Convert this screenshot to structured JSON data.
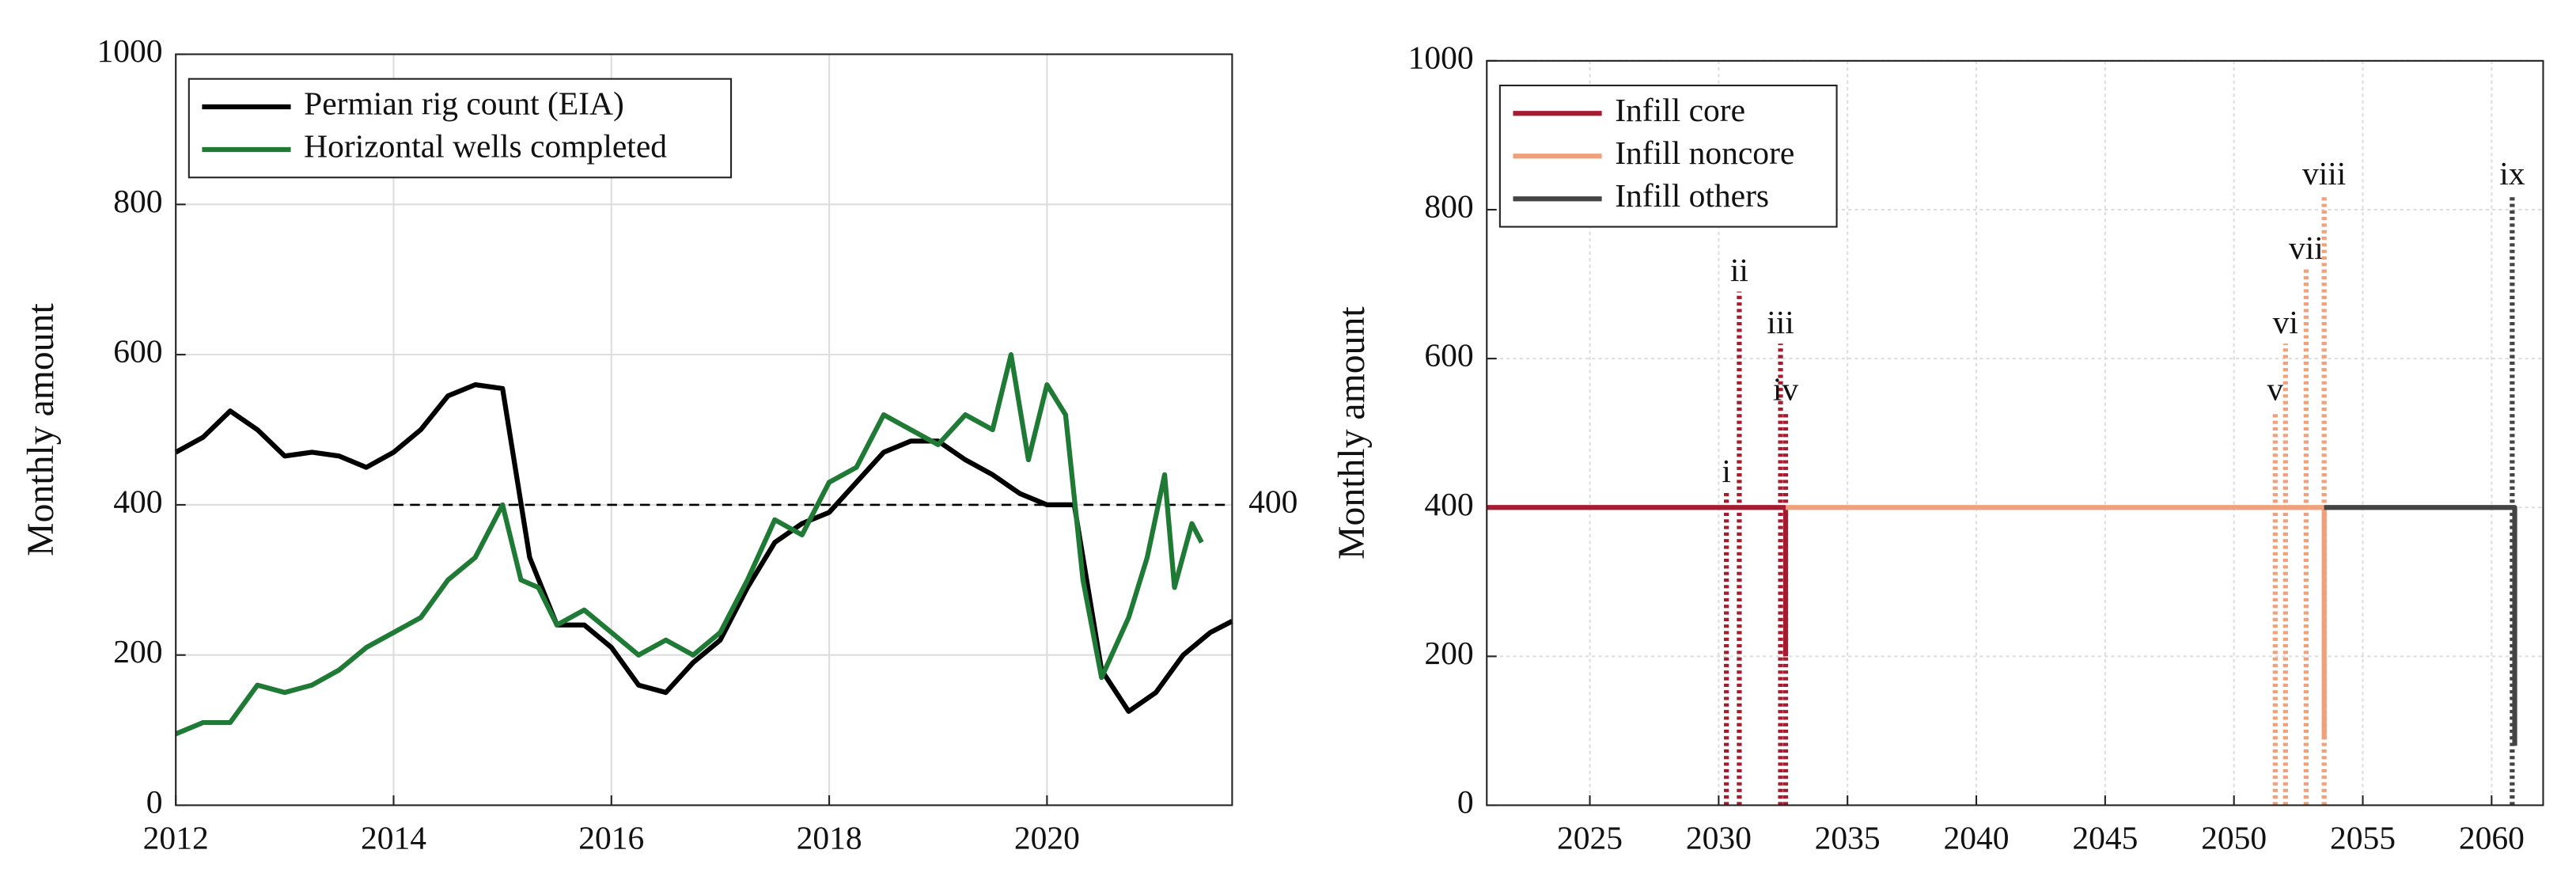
{
  "chart_data": [
    {
      "type": "line",
      "y_label": "Monthly amount",
      "xlim": [
        2012,
        2021.7
      ],
      "ylim": [
        0,
        1000
      ],
      "xticks": [
        2012,
        2014,
        2016,
        2018,
        2020
      ],
      "yticks": [
        0,
        200,
        400,
        600,
        800,
        1000
      ],
      "grid": true,
      "legend": "upper left",
      "series": [
        {
          "name": "Permian rig count (EIA)",
          "color": "#000000",
          "x": [
            2012.0,
            2012.25,
            2012.5,
            2012.75,
            2013.0,
            2013.25,
            2013.5,
            2013.75,
            2014.0,
            2014.25,
            2014.5,
            2014.75,
            2015.0,
            2015.25,
            2015.5,
            2015.75,
            2016.0,
            2016.25,
            2016.5,
            2016.75,
            2017.0,
            2017.25,
            2017.5,
            2017.75,
            2018.0,
            2018.25,
            2018.5,
            2018.75,
            2019.0,
            2019.25,
            2019.5,
            2019.75,
            2020.0,
            2020.25,
            2020.5,
            2020.75,
            2021.0,
            2021.25,
            2021.5,
            2021.7
          ],
          "values": [
            470,
            490,
            525,
            500,
            465,
            470,
            465,
            450,
            470,
            500,
            545,
            560,
            555,
            330,
            240,
            240,
            210,
            160,
            150,
            190,
            220,
            290,
            350,
            375,
            390,
            430,
            470,
            485,
            485,
            460,
            440,
            415,
            400,
            400,
            180,
            125,
            150,
            200,
            230,
            245
          ]
        },
        {
          "name": "Horizontal wells completed",
          "color": "#1e7a34",
          "x": [
            2012.0,
            2012.25,
            2012.5,
            2012.75,
            2013.0,
            2013.25,
            2013.5,
            2013.75,
            2014.0,
            2014.25,
            2014.5,
            2014.75,
            2015.0,
            2015.17,
            2015.33,
            2015.5,
            2015.75,
            2016.0,
            2016.25,
            2016.5,
            2016.75,
            2017.0,
            2017.25,
            2017.5,
            2017.75,
            2018.0,
            2018.25,
            2018.5,
            2018.75,
            2019.0,
            2019.25,
            2019.5,
            2019.67,
            2019.83,
            2020.0,
            2020.17,
            2020.33,
            2020.5,
            2020.75,
            2020.92,
            2021.08,
            2021.17,
            2021.33,
            2021.42
          ],
          "values": [
            95,
            110,
            110,
            160,
            150,
            160,
            180,
            210,
            230,
            250,
            300,
            330,
            400,
            300,
            290,
            240,
            260,
            230,
            200,
            220,
            200,
            230,
            300,
            380,
            360,
            430,
            450,
            520,
            500,
            480,
            520,
            500,
            600,
            460,
            560,
            520,
            300,
            170,
            250,
            330,
            440,
            290,
            375,
            350
          ]
        }
      ],
      "reference_line": {
        "y": 400,
        "x_start": 2014,
        "label": 400
      }
    },
    {
      "type": "line",
      "y_label": "Monthly amount",
      "xlim": [
        2021,
        2062
      ],
      "ylim": [
        0,
        1000
      ],
      "xticks": [
        2025,
        2030,
        2035,
        2040,
        2045,
        2050,
        2055,
        2060
      ],
      "yticks": [
        0,
        200,
        400,
        600,
        800,
        1000
      ],
      "grid": true,
      "legend": "upper left",
      "series": [
        {
          "name": "Infill core",
          "color": "#a51c30",
          "x": [
            2021,
            2032.6,
            2032.6
          ],
          "values": [
            400,
            400,
            200
          ]
        },
        {
          "name": "Infill noncore",
          "color": "#f0a07a",
          "x": [
            2032.6,
            2053.5,
            2053.5
          ],
          "values": [
            400,
            400,
            90
          ]
        },
        {
          "name": "Infill others",
          "color": "#444444",
          "x": [
            2053.5,
            2060.9,
            2060.9
          ],
          "values": [
            400,
            400,
            80
          ]
        }
      ],
      "markers": [
        {
          "label": "i",
          "x": 2030.3,
          "y": 420,
          "series": 0
        },
        {
          "label": "ii",
          "x": 2030.8,
          "y": 690,
          "series": 0
        },
        {
          "label": "iii",
          "x": 2032.4,
          "y": 620,
          "series": 0
        },
        {
          "label": "iv",
          "x": 2032.6,
          "y": 530,
          "series": 0
        },
        {
          "label": "v",
          "x": 2051.6,
          "y": 530,
          "series": 1
        },
        {
          "label": "vi",
          "x": 2052.0,
          "y": 620,
          "series": 1
        },
        {
          "label": "vii",
          "x": 2052.8,
          "y": 720,
          "series": 1
        },
        {
          "label": "viii",
          "x": 2053.5,
          "y": 820,
          "series": 1
        },
        {
          "label": "ix",
          "x": 2060.8,
          "y": 820,
          "series": 2
        }
      ]
    }
  ]
}
